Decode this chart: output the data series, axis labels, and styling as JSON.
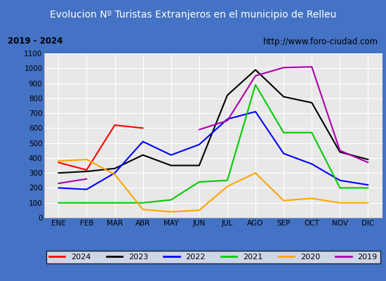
{
  "title": "Evolucion Nº Turistas Extranjeros en el municipio de Relleu",
  "subtitle_left": "2019 - 2024",
  "subtitle_right": "http://www.foro-ciudad.com",
  "months": [
    "ENE",
    "FEB",
    "MAR",
    "ABR",
    "MAY",
    "JUN",
    "JUL",
    "AGO",
    "SEP",
    "OCT",
    "NOV",
    "DIC"
  ],
  "ylim": [
    0,
    1100
  ],
  "yticks": [
    0,
    100,
    200,
    300,
    400,
    500,
    600,
    700,
    800,
    900,
    1000,
    1100
  ],
  "series": {
    "2024": {
      "color": "#ff0000",
      "data": [
        370,
        320,
        620,
        600,
        null,
        null,
        null,
        null,
        null,
        null,
        null,
        null
      ]
    },
    "2023": {
      "color": "#000000",
      "data": [
        300,
        310,
        330,
        420,
        350,
        350,
        820,
        990,
        810,
        770,
        440,
        390
      ]
    },
    "2022": {
      "color": "#0000ff",
      "data": [
        200,
        190,
        300,
        510,
        420,
        490,
        660,
        710,
        430,
        360,
        250,
        220
      ]
    },
    "2021": {
      "color": "#00cc00",
      "data": [
        100,
        100,
        100,
        100,
        120,
        240,
        250,
        890,
        570,
        570,
        200,
        200
      ]
    },
    "2020": {
      "color": "#ffa500",
      "data": [
        380,
        390,
        290,
        55,
        40,
        50,
        210,
        300,
        115,
        130,
        100,
        100
      ]
    },
    "2019": {
      "color": "#aa00aa",
      "data": [
        230,
        260,
        null,
        null,
        null,
        590,
        650,
        950,
        1005,
        1010,
        450,
        370
      ]
    }
  },
  "legend_order": [
    "2024",
    "2023",
    "2022",
    "2021",
    "2020",
    "2019"
  ],
  "title_bg_color": "#4472c4",
  "title_text_color": "#ffffff",
  "subtitle_bg_color": "#e8e8e8",
  "plot_bg_color": "#e8e8e8",
  "grid_color": "#ffffff",
  "outer_bg_color": "#4472c4",
  "title_fontsize": 10,
  "subtitle_fontsize": 8.5,
  "tick_fontsize": 7.5,
  "legend_fontsize": 8
}
